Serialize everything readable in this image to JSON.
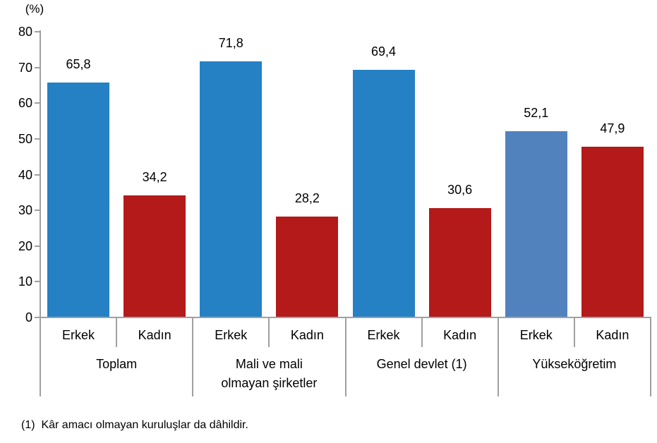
{
  "chart_data": {
    "type": "bar",
    "title": "",
    "unit_label": "(%)",
    "ylabel": "(%)",
    "xlabel": "",
    "ylim": [
      0,
      80
    ],
    "ytick_step": 10,
    "yticks": [
      0,
      10,
      20,
      30,
      40,
      50,
      60,
      70,
      80
    ],
    "grid": false,
    "legend": "none",
    "decimal_separator": ",",
    "categories": [
      "Toplam",
      "Mali ve mali olmayan şirketler",
      "Genel devlet (1)",
      "Yükseköğretim"
    ],
    "series": [
      {
        "name": "Erkek",
        "values": [
          65.8,
          71.8,
          69.4,
          52.1
        ]
      },
      {
        "name": "Kadın",
        "values": [
          34.2,
          28.2,
          30.6,
          47.9
        ]
      }
    ],
    "groups": [
      {
        "label": "Toplam",
        "bars": [
          {
            "label": "Erkek",
            "value": 65.8,
            "value_label": "65,8",
            "color_key": "blue"
          },
          {
            "label": "Kadın",
            "value": 34.2,
            "value_label": "34,2",
            "color_key": "red"
          }
        ]
      },
      {
        "label": "Mali ve mali\nolmayan şirketler",
        "bars": [
          {
            "label": "Erkek",
            "value": 71.8,
            "value_label": "71,8",
            "color_key": "blue"
          },
          {
            "label": "Kadın",
            "value": 28.2,
            "value_label": "28,2",
            "color_key": "red"
          }
        ]
      },
      {
        "label": "Genel devlet (1)",
        "bars": [
          {
            "label": "Erkek",
            "value": 69.4,
            "value_label": "69,4",
            "color_key": "blue"
          },
          {
            "label": "Kadın",
            "value": 30.6,
            "value_label": "30,6",
            "color_key": "red"
          }
        ]
      },
      {
        "label": "Yükseköğretim",
        "bars": [
          {
            "label": "Erkek",
            "value": 52.1,
            "value_label": "52,1",
            "color_key": "blue_light"
          },
          {
            "label": "Kadın",
            "value": 47.9,
            "value_label": "47,9",
            "color_key": "red"
          }
        ]
      }
    ],
    "colors": {
      "blue": "#2581c3",
      "blue_light": "#5282be",
      "red": "#b31a19",
      "axis": "#a0a0a0",
      "text": "#000000"
    },
    "footnote": "(1)  Kâr amacı olmayan kuruluşlar da dâhildir."
  }
}
